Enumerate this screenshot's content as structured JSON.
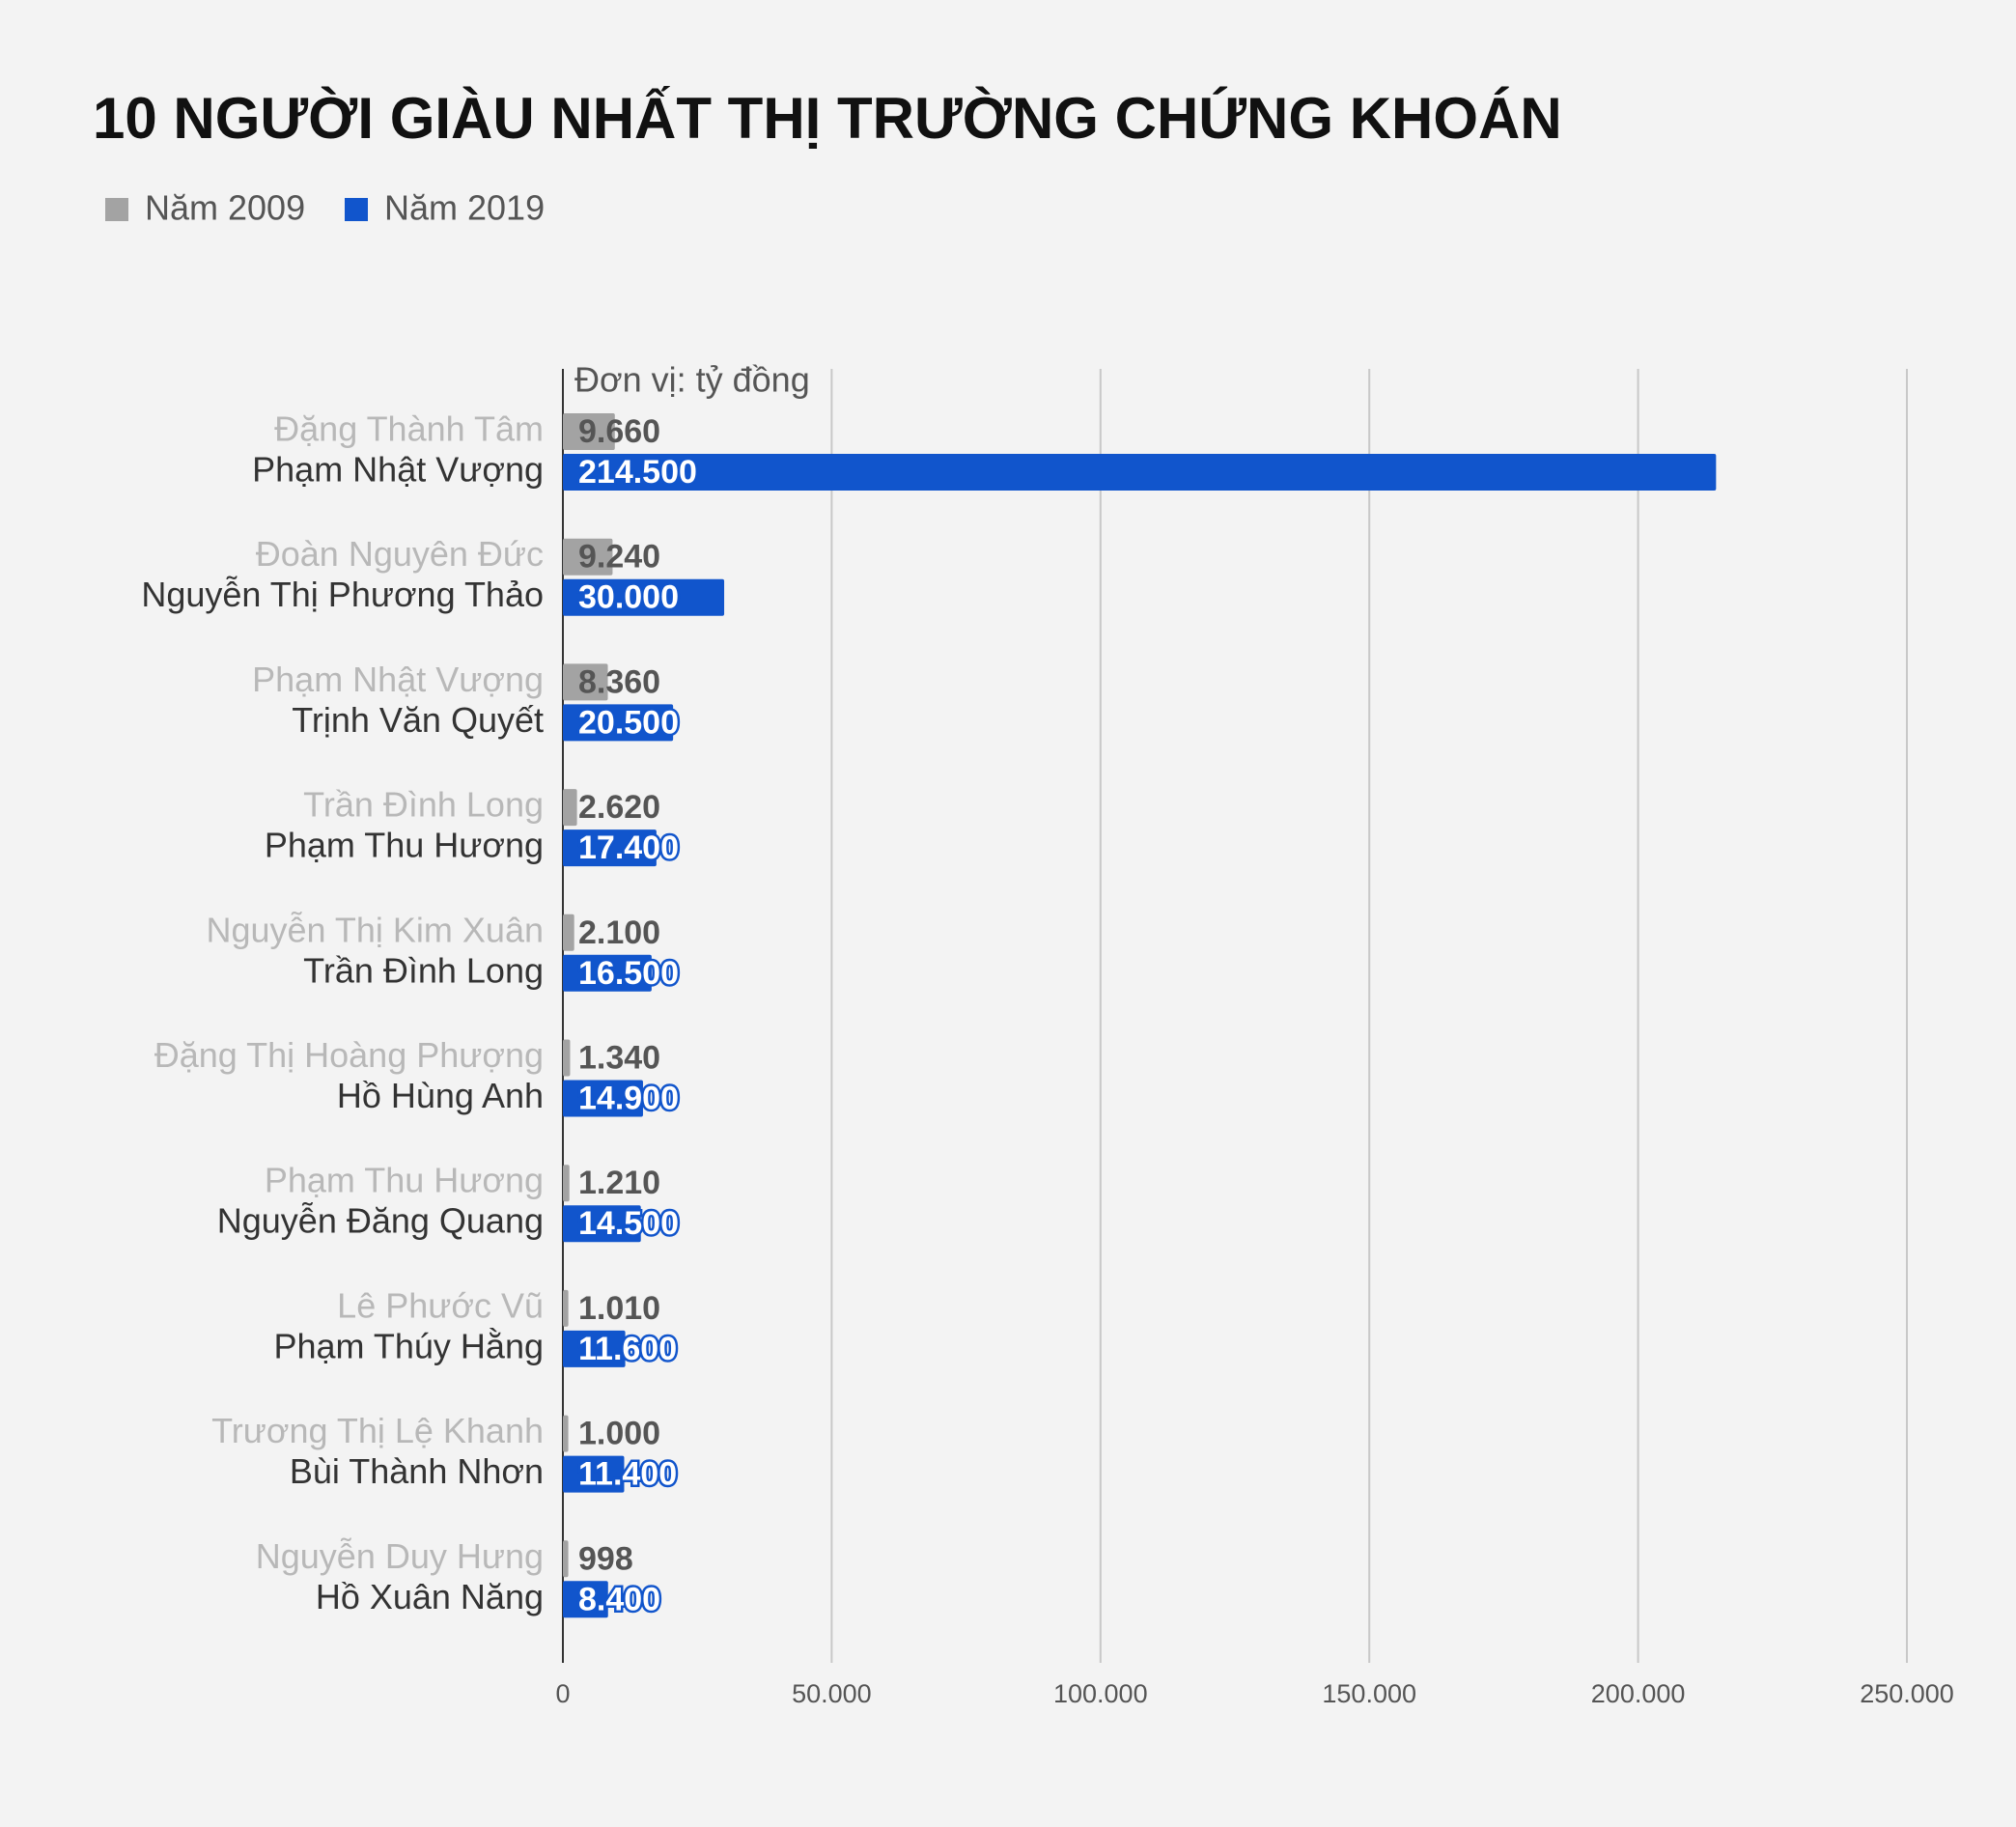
{
  "chart_data": {
    "type": "bar",
    "orientation": "horizontal",
    "title": "10 NGƯỜI GIÀU NHẤT THỊ TRƯỜNG CHỨNG KHOÁN",
    "annotation": "Đơn vị: tỷ đồng",
    "series": [
      {
        "name": "Năm 2009",
        "color": "#a3a3a3",
        "labels": [
          "Đặng Thành Tâm",
          "Đoàn Nguyên Đức",
          "Phạm Nhật Vượng",
          "Trần Đình Long",
          "Nguyễn Thị Kim Xuân",
          "Đặng Thị Hoàng Phượng",
          "Phạm Thu Hương",
          "Lê Phước Vũ",
          "Trương Thị Lệ Khanh",
          "Nguyễn Duy Hưng"
        ],
        "values": [
          9660,
          9240,
          8360,
          2620,
          2100,
          1340,
          1210,
          1010,
          1000,
          998
        ],
        "value_labels": [
          "9.660",
          "9.240",
          "8.360",
          "2.620",
          "2.100",
          "1.340",
          "1.210",
          "1.010",
          "1.000",
          "998"
        ]
      },
      {
        "name": "Năm 2019",
        "color": "#1155cc",
        "labels": [
          "Phạm Nhật Vượng",
          "Nguyễn Thị Phương Thảo",
          "Trịnh Văn Quyết",
          "Phạm Thu Hương",
          "Trần Đình Long",
          "Hồ Hùng Anh",
          "Nguyễn Đăng Quang",
          "Phạm Thúy Hằng",
          "Bùi Thành Nhơn",
          "Hồ Xuân Năng"
        ],
        "values": [
          214500,
          30000,
          20500,
          17400,
          16500,
          14900,
          14500,
          11600,
          11400,
          8400
        ],
        "value_labels": [
          "214.500",
          "30.000",
          "20.500",
          "17.400",
          "16.500",
          "14.900",
          "14.500",
          "11.600",
          "11.400",
          "8.400"
        ]
      }
    ],
    "xlim": [
      0,
      250000
    ],
    "xticks": [
      0,
      {
        "value": 50000,
        "label": "50.000"
      },
      {
        "value": 100000,
        "label": "100.000"
      },
      {
        "value": 150000,
        "label": "150.000"
      },
      {
        "value": 200000,
        "label": "200.000"
      },
      {
        "value": 250000,
        "label": "250.000"
      }
    ],
    "grid": true,
    "legend": "top-left"
  }
}
